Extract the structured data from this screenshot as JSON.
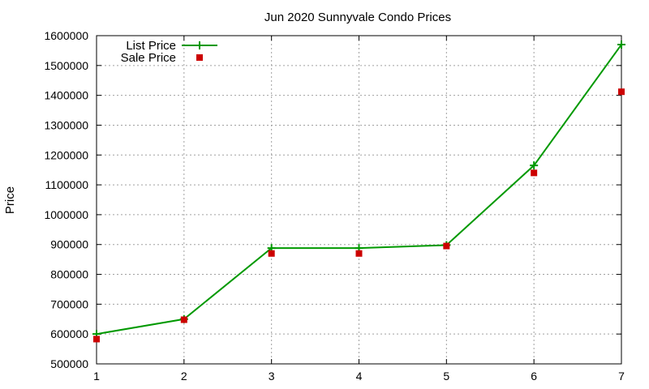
{
  "chart_data": {
    "type": "line",
    "title": "Jun 2020 Sunnyvale Condo Prices",
    "xlabel": "",
    "ylabel": "Price",
    "x": [
      1,
      2,
      3,
      4,
      5,
      6,
      7
    ],
    "xlim": [
      1,
      7
    ],
    "ylim": [
      500000,
      1600000
    ],
    "xticks": [
      "1",
      "2",
      "3",
      "4",
      "5",
      "6",
      "7"
    ],
    "yticks": [
      "500000",
      "600000",
      "700000",
      "800000",
      "900000",
      "1000000",
      "1100000",
      "1200000",
      "1300000",
      "1400000",
      "1500000",
      "1600000"
    ],
    "grid": true,
    "legend_position": "top-left",
    "series": [
      {
        "name": "List Price",
        "style": "line-with-plus-markers",
        "color": "#009900",
        "values": [
          600000,
          650000,
          888000,
          888000,
          898000,
          1165000,
          1570000
        ]
      },
      {
        "name": "Sale Price",
        "style": "square-markers",
        "color": "#cc0000",
        "values": [
          583000,
          648000,
          870000,
          870000,
          895000,
          1140000,
          1412000
        ]
      }
    ]
  }
}
